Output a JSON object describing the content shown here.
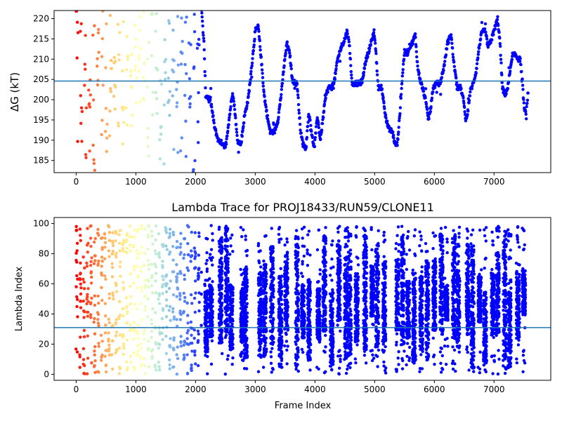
{
  "chart_data": [
    {
      "type": "scatter",
      "title": "",
      "xlabel": "",
      "ylabel": "ΔG (kT)",
      "xlim": [
        -370,
        7950
      ],
      "ylim": [
        182,
        222
      ],
      "xticks": [
        "0",
        "1000",
        "2000",
        "3000",
        "4000",
        "5000",
        "6000",
        "7000"
      ],
      "yticks": [
        "185",
        "190",
        "195",
        "200",
        "205",
        "210",
        "215",
        "220"
      ],
      "hline": 204.6,
      "hline_color": "#1f77b4",
      "colormap": "rainbow (late frames purple → early frames red)",
      "x_range_of_data": [
        0,
        7570
      ],
      "trace": [
        [
          0,
          220
        ],
        [
          40,
          210
        ],
        [
          80,
          196
        ],
        [
          120,
          186
        ],
        [
          160,
          214
        ],
        [
          200,
          205
        ],
        [
          240,
          200
        ],
        [
          300,
          184
        ],
        [
          360,
          208
        ],
        [
          420,
          221
        ],
        [
          480,
          200
        ],
        [
          540,
          187
        ],
        [
          600,
          210
        ],
        [
          660,
          202
        ],
        [
          720,
          222
        ],
        [
          780,
          190
        ],
        [
          850,
          210
        ],
        [
          900,
          202
        ],
        [
          960,
          199
        ],
        [
          1020,
          207
        ],
        [
          1080,
          218
        ],
        [
          1140,
          203
        ],
        [
          1200,
          197
        ],
        [
          1260,
          214
        ],
        [
          1300,
          222
        ],
        [
          1340,
          206
        ],
        [
          1400,
          195
        ],
        [
          1450,
          200
        ],
        [
          1500,
          211
        ],
        [
          1560,
          203
        ],
        [
          1620,
          209
        ],
        [
          1680,
          198
        ],
        [
          1740,
          220
        ],
        [
          1800,
          207
        ],
        [
          1860,
          215
        ],
        [
          1900,
          199
        ],
        [
          1950,
          208
        ],
        [
          2000,
          213
        ],
        [
          2050,
          217
        ],
        [
          2100,
          222
        ],
        [
          2140,
          214
        ],
        [
          2170,
          201
        ],
        [
          2250,
          200
        ],
        [
          2320,
          193
        ],
        [
          2380,
          190
        ],
        [
          2470,
          189
        ],
        [
          2500,
          188
        ],
        [
          2560,
          195
        ],
        [
          2620,
          202
        ],
        [
          2660,
          197
        ],
        [
          2700,
          190
        ],
        [
          2760,
          189
        ],
        [
          2820,
          196
        ],
        [
          2880,
          200
        ],
        [
          2940,
          208
        ],
        [
          3000,
          217
        ],
        [
          3050,
          218
        ],
        [
          3100,
          210
        ],
        [
          3150,
          201
        ],
        [
          3200,
          196
        ],
        [
          3250,
          192
        ],
        [
          3320,
          192
        ],
        [
          3380,
          195
        ],
        [
          3440,
          202
        ],
        [
          3480,
          208
        ],
        [
          3530,
          214
        ],
        [
          3580,
          211
        ],
        [
          3620,
          205
        ],
        [
          3670,
          204
        ],
        [
          3700,
          204
        ],
        [
          3760,
          192
        ],
        [
          3800,
          189
        ],
        [
          3850,
          188
        ],
        [
          3890,
          196
        ],
        [
          3920,
          195
        ],
        [
          3950,
          191
        ],
        [
          3990,
          188
        ],
        [
          4040,
          196
        ],
        [
          4090,
          190
        ],
        [
          4140,
          196
        ],
        [
          4180,
          201
        ],
        [
          4230,
          203
        ],
        [
          4280,
          203
        ],
        [
          4330,
          205
        ],
        [
          4380,
          210
        ],
        [
          4440,
          213
        ],
        [
          4500,
          215
        ],
        [
          4540,
          217
        ],
        [
          4580,
          213
        ],
        [
          4620,
          204
        ],
        [
          4700,
          204
        ],
        [
          4760,
          204
        ],
        [
          4800,
          205
        ],
        [
          4840,
          209
        ],
        [
          4900,
          212
        ],
        [
          4960,
          215
        ],
        [
          4990,
          217
        ],
        [
          5020,
          212
        ],
        [
          5060,
          203
        ],
        [
          5120,
          203
        ],
        [
          5180,
          196
        ],
        [
          5230,
          193
        ],
        [
          5300,
          192
        ],
        [
          5340,
          189
        ],
        [
          5380,
          189
        ],
        [
          5420,
          196
        ],
        [
          5460,
          205
        ],
        [
          5500,
          212
        ],
        [
          5540,
          211
        ],
        [
          5580,
          213
        ],
        [
          5630,
          214
        ],
        [
          5680,
          216
        ],
        [
          5720,
          208
        ],
        [
          5760,
          205
        ],
        [
          5800,
          203
        ],
        [
          5850,
          200
        ],
        [
          5900,
          195
        ],
        [
          5940,
          198
        ],
        [
          5980,
          203
        ],
        [
          6040,
          204
        ],
        [
          6100,
          204
        ],
        [
          6160,
          208
        ],
        [
          6220,
          214
        ],
        [
          6280,
          216
        ],
        [
          6320,
          210
        ],
        [
          6380,
          203
        ],
        [
          6440,
          203
        ],
        [
          6500,
          199
        ],
        [
          6520,
          195
        ],
        [
          6560,
          197
        ],
        [
          6600,
          202
        ],
        [
          6650,
          204
        ],
        [
          6700,
          207
        ],
        [
          6750,
          213
        ],
        [
          6800,
          217
        ],
        [
          6850,
          217
        ],
        [
          6900,
          213
        ],
        [
          6960,
          215
        ],
        [
          7020,
          218
        ],
        [
          7060,
          220
        ],
        [
          7100,
          214
        ],
        [
          7140,
          203
        ],
        [
          7180,
          201
        ],
        [
          7230,
          203
        ],
        [
          7270,
          207
        ],
        [
          7310,
          211
        ],
        [
          7360,
          211
        ],
        [
          7410,
          210
        ],
        [
          7440,
          210
        ],
        [
          7480,
          203
        ],
        [
          7510,
          197
        ],
        [
          7540,
          197
        ],
        [
          7570,
          202
        ]
      ]
    },
    {
      "type": "scatter",
      "title": "Lambda Trace for PROJ18433/RUN59/CLONE11",
      "xlabel": "Frame Index",
      "ylabel": "Lambda Index",
      "xlim": [
        -370,
        7950
      ],
      "ylim": [
        -4,
        104
      ],
      "xticks": [
        "0",
        "1000",
        "2000",
        "3000",
        "4000",
        "5000",
        "6000",
        "7000"
      ],
      "yticks": [
        "0",
        "20",
        "40",
        "60",
        "80",
        "100"
      ],
      "hline": 31,
      "hline_color": "#1f77b4",
      "colormap": "rainbow (late frames purple → early frames red)",
      "x_range_of_data": [
        0,
        7570
      ],
      "lambda_range_of_data": [
        0,
        99
      ],
      "band_centers": [
        2180,
        2260,
        2420,
        2520,
        2600,
        2780,
        2840,
        3080,
        3160,
        3280,
        3420,
        3520,
        3700,
        3800,
        3900,
        4060,
        4160,
        4280,
        4400,
        4520,
        4580,
        4700,
        4840,
        4960,
        5040,
        5160,
        5380,
        5470,
        5560,
        5660,
        5780,
        5880,
        6000,
        6120,
        6200,
        6330,
        6400,
        6560,
        6640,
        6760,
        6850,
        6980,
        7060,
        7180,
        7260,
        7400,
        7500
      ]
    }
  ]
}
